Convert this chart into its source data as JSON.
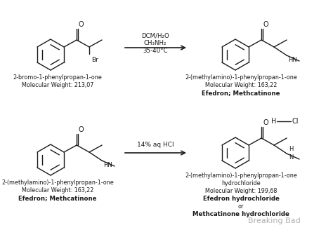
{
  "bg_color": "#ffffff",
  "line_color": "#1a1a1a",
  "mol1_name": "2-bromo-1-phenylpropan-1-one",
  "mol1_mw": "Molecular Weight: 213,07",
  "mol2_name": "2-(methylamino)-1-phenylpropan-1-one",
  "mol2_mw": "Molecular Weight: 163,22",
  "mol2_bold": "Efedron; Methcatinone",
  "mol3_name": "2-(methylamino)-1-phenylpropan-1-one",
  "mol3_mw": "Molecular Weight: 163,22",
  "mol3_bold": "Efedron; Methcatinone",
  "mol4_name1": "2-(methylamino)-1-phenylpropan-1-one",
  "mol4_name2": "hydrochloride",
  "mol4_mw": "Molecular Weight: 199,68",
  "mol4_bold1": "Efedron hydrochloride",
  "mol4_bold2": "or",
  "mol4_bold3": "Methcatinone hydrochloride",
  "cond1_line1": "DCM/H₂O",
  "cond1_line2": "CH₃NH₂",
  "cond1_line3": "35-40°C",
  "cond2": "14% aq HCl",
  "watermark": "Breaking Bad",
  "lw": 1.0,
  "r": 22
}
